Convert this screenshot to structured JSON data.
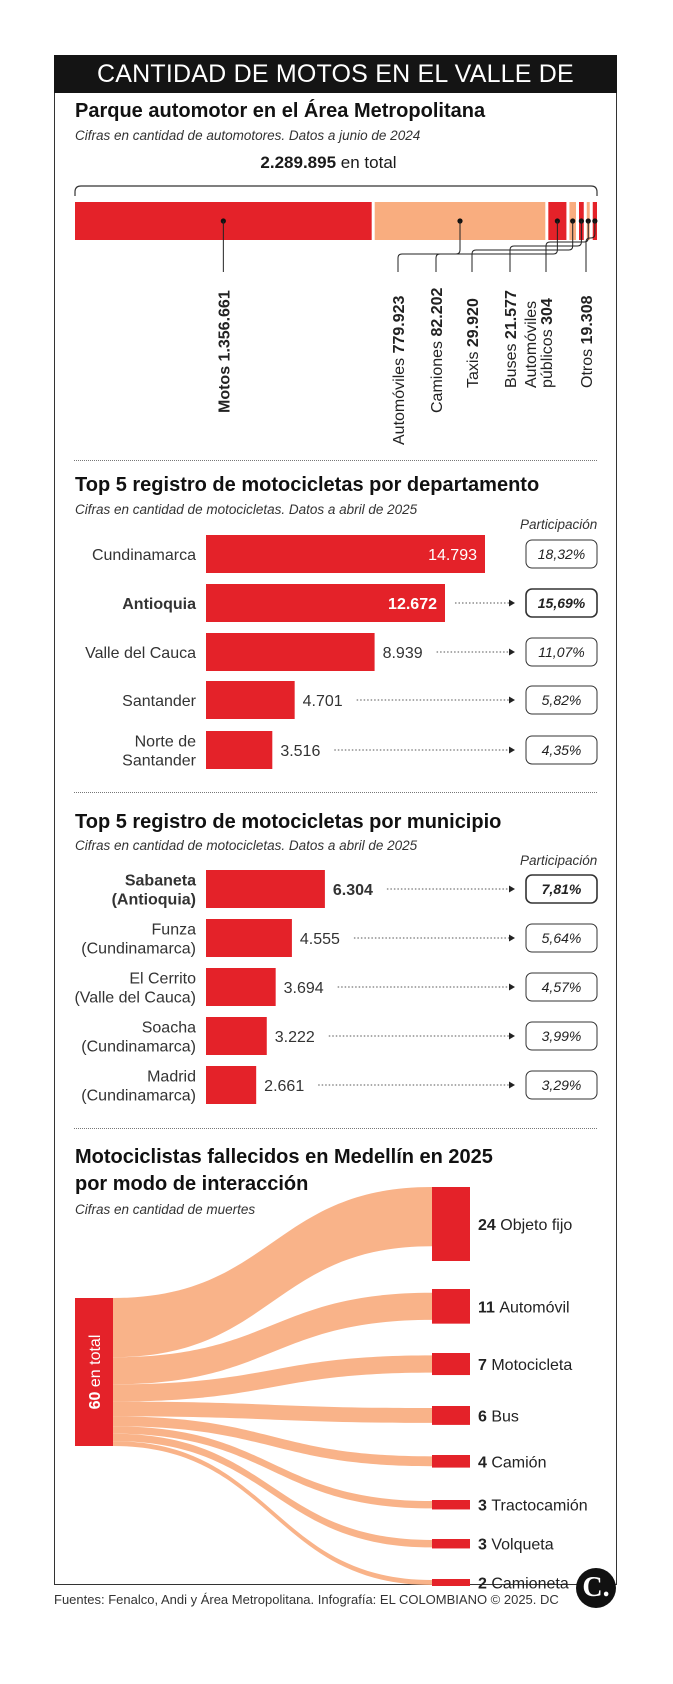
{
  "header": {
    "title": "CANTIDAD DE MOTOS EN EL VALLE DE ABURRÁ"
  },
  "section1": {
    "title": "Parque automotor en el Área Metropolitana",
    "subtitle": "Cifras en cantidad de automotores. Datos a junio de 2024",
    "total_value": "2.289.895",
    "total_suffix": "en total"
  },
  "section2": {
    "title": "Top 5 registro de motocicletas por departamento",
    "subtitle": "Cifras en cantidad de motocicletas. Datos a abril de 2025",
    "share_header": "Participación"
  },
  "section3": {
    "title": "Top 5 registro de motocicletas por municipio",
    "subtitle": "Cifras en cantidad de motocicletas. Datos a abril de 2025",
    "share_header": "Participación"
  },
  "section4": {
    "title_line1": "Motociclistas fallecidos en Medellín en 2025",
    "title_line2": "por modo de interacción",
    "subtitle": "Cifras en cantidad de muertes",
    "total_label": "60 en total"
  },
  "footer": {
    "text": "Fuentes: Fenalco, Andi y Área Metropolitana. Infografía: EL COLOMBIANO © 2025. DC"
  },
  "logo": {
    "text": "C."
  },
  "colors": {
    "red": "#e42229",
    "salmon": "#f9ad7f",
    "dark": "#141414"
  },
  "chart_data": [
    {
      "type": "bar",
      "orientation": "stacked-horizontal",
      "title": "Parque automotor en el Área Metropolitana",
      "total": 2289895,
      "total_label": "2.289.895",
      "series": [
        {
          "name": "Motos",
          "value": 1356661,
          "label": "1.356.661",
          "color": "#e42229"
        },
        {
          "name": "Automóviles",
          "value": 779923,
          "label": "779.923",
          "color": "#f9ad7f"
        },
        {
          "name": "Camiones",
          "value": 82202,
          "label": "82.202",
          "color": "#e42229"
        },
        {
          "name": "Taxis",
          "value": 29920,
          "label": "29.920",
          "color": "#f9ad7f"
        },
        {
          "name": "Buses",
          "value": 21577,
          "label": "21.577",
          "color": "#e42229"
        },
        {
          "name": "Automóviles públicos",
          "name_line1": "Automóviles",
          "name_line2": "públicos",
          "value": 304,
          "label": "304",
          "color": "#f9ad7f"
        },
        {
          "name": "Otros",
          "value": 19308,
          "label": "19.308",
          "color": "#e42229"
        }
      ]
    },
    {
      "type": "bar",
      "orientation": "horizontal",
      "title": "Top 5 registro de motocicletas por departamento",
      "xlim": [
        0,
        14793
      ],
      "rows": [
        {
          "category": "Cundinamarca",
          "lines": [
            "Cundinamarca"
          ],
          "value": 14793,
          "label": "14.793",
          "share": "18,32%",
          "highlight": false,
          "label_inside": true
        },
        {
          "category": "Antioquia",
          "lines": [
            "Antioquia"
          ],
          "value": 12672,
          "label": "12.672",
          "share": "15,69%",
          "highlight": true,
          "label_inside": true
        },
        {
          "category": "Valle del Cauca",
          "lines": [
            "Valle del Cauca"
          ],
          "value": 8939,
          "label": "8.939",
          "share": "11,07%",
          "highlight": false,
          "label_inside": false
        },
        {
          "category": "Santander",
          "lines": [
            "Santander"
          ],
          "value": 4701,
          "label": "4.701",
          "share": "5,82%",
          "highlight": false,
          "label_inside": false
        },
        {
          "category": "Norte de Santander",
          "lines": [
            "Norte de",
            "Santander"
          ],
          "value": 3516,
          "label": "3.516",
          "share": "4,35%",
          "highlight": false,
          "label_inside": false
        }
      ]
    },
    {
      "type": "bar",
      "orientation": "horizontal",
      "title": "Top 5 registro de motocicletas por municipio",
      "xlim": [
        0,
        14793
      ],
      "rows": [
        {
          "category": "Sabaneta (Antioquia)",
          "lines": [
            "Sabaneta",
            "(Antioquia)"
          ],
          "value": 6304,
          "label": "6.304",
          "share": "7,81%",
          "highlight": true,
          "label_inside": false
        },
        {
          "category": "Funza (Cundinamarca)",
          "lines": [
            "Funza",
            "(Cundinamarca)"
          ],
          "value": 4555,
          "label": "4.555",
          "share": "5,64%",
          "highlight": false,
          "label_inside": false
        },
        {
          "category": "El Cerrito (Valle del Cauca)",
          "lines": [
            "El Cerrito",
            "(Valle del Cauca)"
          ],
          "value": 3694,
          "label": "3.694",
          "share": "4,57%",
          "highlight": false,
          "label_inside": false
        },
        {
          "category": "Soacha (Cundinamarca)",
          "lines": [
            "Soacha",
            "(Cundinamarca)"
          ],
          "value": 3222,
          "label": "3.222",
          "share": "3,99%",
          "highlight": false,
          "label_inside": false
        },
        {
          "category": "Madrid (Cundinamarca)",
          "lines": [
            "Madrid",
            "(Cundinamarca)"
          ],
          "value": 2661,
          "label": "2.661",
          "share": "3,29%",
          "highlight": false,
          "label_inside": false
        }
      ]
    },
    {
      "type": "sankey",
      "title": "Motociclistas fallecidos en Medellín en 2025 por modo de interacción",
      "source": {
        "name": "60 en total",
        "value": 60
      },
      "targets": [
        {
          "name": "Objeto fijo",
          "value": 24
        },
        {
          "name": "Automóvil",
          "value": 11
        },
        {
          "name": "Motocicleta",
          "value": 7
        },
        {
          "name": "Bus",
          "value": 6
        },
        {
          "name": "Camión",
          "value": 4
        },
        {
          "name": "Tractocamión",
          "value": 3
        },
        {
          "name": "Volqueta",
          "value": 3
        },
        {
          "name": "Camioneta",
          "value": 2
        }
      ]
    }
  ]
}
